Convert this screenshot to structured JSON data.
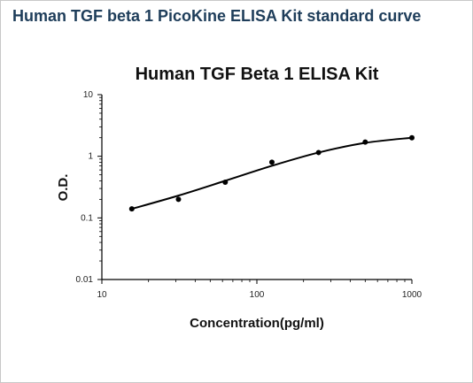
{
  "page": {
    "title": "Human TGF beta 1 PicoKine ELISA Kit standard curve"
  },
  "chart_data": {
    "type": "scatter",
    "title": "Human TGF Beta 1 ELISA Kit",
    "xlabel": "Concentration(pg/ml)",
    "ylabel": "O.D.",
    "x_scale": "log",
    "y_scale": "log",
    "xlim": [
      10,
      1000
    ],
    "ylim": [
      0.01,
      10
    ],
    "x_ticks": [
      {
        "value": 10,
        "label": "10"
      },
      {
        "value": 100,
        "label": "100"
      },
      {
        "value": 1000,
        "label": "1000"
      }
    ],
    "y_ticks": [
      {
        "value": 10,
        "label": "10"
      },
      {
        "value": 1,
        "label": "1"
      },
      {
        "value": 0.1,
        "label": "0.1"
      },
      {
        "value": 0.01,
        "label": "0.01"
      }
    ],
    "grid": false,
    "legend": "none",
    "series": [
      {
        "points": [
          {
            "x": 15.6,
            "y": 0.14
          },
          {
            "x": 31.2,
            "y": 0.2
          },
          {
            "x": 62.5,
            "y": 0.38
          },
          {
            "x": 125,
            "y": 0.8
          },
          {
            "x": 250,
            "y": 1.15
          },
          {
            "x": 500,
            "y": 1.7
          },
          {
            "x": 1000,
            "y": 2.0
          }
        ],
        "fit": [
          {
            "x": 15.6,
            "y": 0.14
          },
          {
            "x": 31.2,
            "y": 0.23
          },
          {
            "x": 62.5,
            "y": 0.4
          },
          {
            "x": 125,
            "y": 0.7
          },
          {
            "x": 250,
            "y": 1.15
          },
          {
            "x": 500,
            "y": 1.65
          },
          {
            "x": 1000,
            "y": 2.0
          }
        ],
        "color": "#000000"
      }
    ]
  }
}
